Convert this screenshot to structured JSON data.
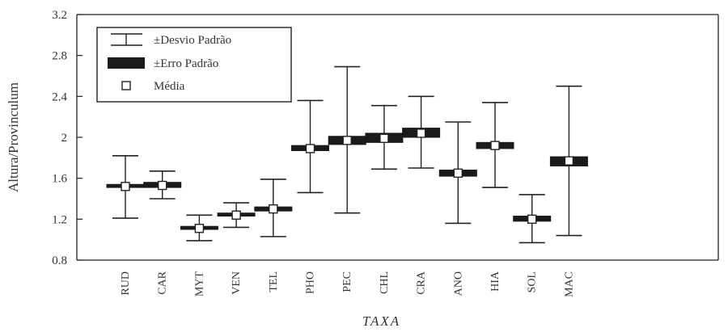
{
  "chart_data": {
    "type": "box",
    "ylabel": "Altura/Provinculum",
    "xlabel": "TAXA",
    "ylim": [
      0.8,
      3.2
    ],
    "yticks": [
      "0.8",
      "1.2",
      "1.6",
      "2",
      "2.4",
      "2.8",
      "3.2"
    ],
    "legend": {
      "placement": "top-left",
      "entries": [
        "±Desvio Padrão",
        "±Erro Padrão",
        "Média"
      ]
    },
    "categories": [
      "RUD",
      "CAR",
      "MYT",
      "VEN",
      "TEL",
      "PHO",
      "PEC",
      "CHL",
      "CRA",
      "ANO",
      "HIA",
      "SOL",
      "MAC"
    ],
    "mean": [
      1.52,
      1.53,
      1.11,
      1.24,
      1.3,
      1.89,
      1.97,
      1.99,
      2.04,
      1.65,
      1.92,
      1.2,
      1.77
    ],
    "sd_low": [
      1.21,
      1.4,
      0.99,
      1.12,
      1.03,
      1.46,
      1.26,
      1.69,
      1.7,
      1.16,
      1.51,
      0.97,
      1.04
    ],
    "sd_high": [
      1.82,
      1.67,
      1.24,
      1.36,
      1.59,
      2.36,
      2.69,
      2.31,
      2.4,
      2.15,
      2.34,
      1.44,
      2.5
    ],
    "se_low": [
      1.51,
      1.51,
      1.1,
      1.23,
      1.28,
      1.87,
      1.93,
      1.95,
      2.0,
      1.62,
      1.89,
      1.18,
      1.72
    ],
    "se_high": [
      1.54,
      1.56,
      1.13,
      1.26,
      1.32,
      1.92,
      2.01,
      2.04,
      2.09,
      1.68,
      1.95,
      1.23,
      1.81
    ]
  }
}
